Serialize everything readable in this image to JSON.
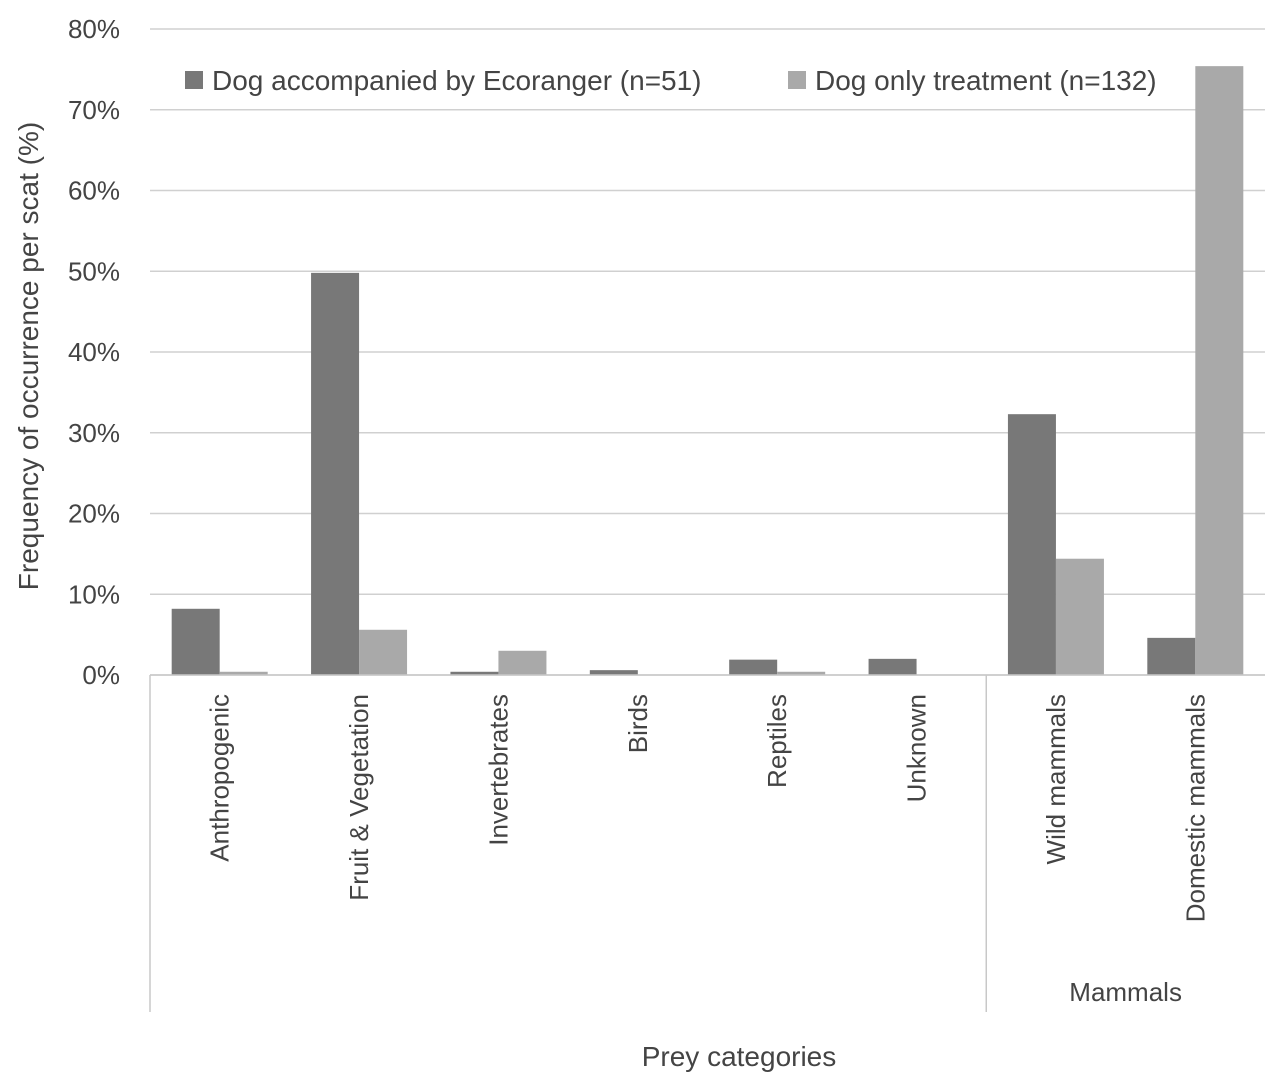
{
  "chart_data": {
    "type": "bar",
    "title": "",
    "xlabel": "Prey categories",
    "ylabel": "Frequency of occurrence per scat (%)",
    "ylim": [
      0,
      80
    ],
    "ytick_step": 10,
    "ytick_suffix": "%",
    "grid": true,
    "legend_position": "top",
    "categories": [
      "Anthropogenic",
      "Fruit & Vegetation",
      "Invertebrates",
      "Birds",
      "Reptiles",
      "Unknown",
      "Wild mammals",
      "Domestic mammals"
    ],
    "category_groups": [
      {
        "label": "",
        "start": 0,
        "end": 5
      },
      {
        "label": "Mammals",
        "start": 6,
        "end": 7
      }
    ],
    "series": [
      {
        "name": "Dog accompanied by Ecoranger (n=51)",
        "color": "#787878",
        "values": [
          8.2,
          49.8,
          0.4,
          0.6,
          1.9,
          2.0,
          32.3,
          4.6
        ]
      },
      {
        "name": "Dog only treatment (n=132)",
        "color": "#a9a9a9",
        "values": [
          0.4,
          5.6,
          3.0,
          0.0,
          0.4,
          0.0,
          14.4,
          75.4
        ]
      }
    ]
  }
}
